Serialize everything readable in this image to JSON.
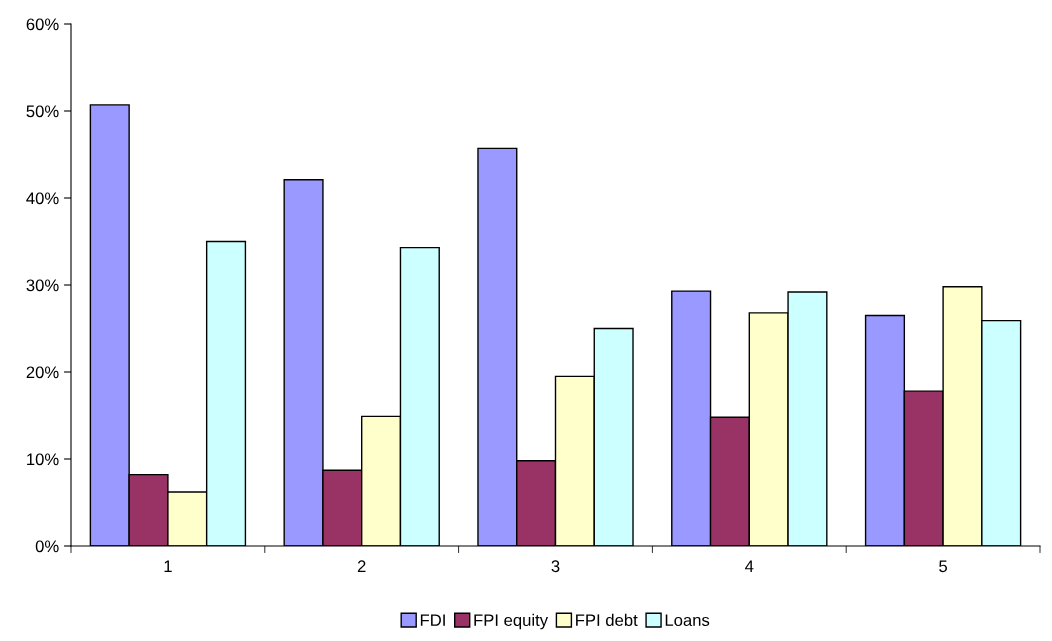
{
  "chart_data": {
    "type": "bar",
    "categories": [
      "1",
      "2",
      "3",
      "4",
      "5"
    ],
    "series": [
      {
        "name": "FDI",
        "color": "#9999ff",
        "values": [
          50.7,
          42.1,
          45.7,
          29.3,
          26.5
        ]
      },
      {
        "name": "FPI equity",
        "color": "#993366",
        "values": [
          8.2,
          8.7,
          9.8,
          14.8,
          17.8
        ]
      },
      {
        "name": "FPI debt",
        "color": "#ffffcc",
        "values": [
          6.2,
          14.9,
          19.5,
          26.8,
          29.8
        ]
      },
      {
        "name": "Loans",
        "color": "#ccffff",
        "values": [
          35.0,
          34.3,
          25.0,
          29.2,
          25.9
        ]
      }
    ],
    "ylim": [
      0,
      60
    ],
    "yticks": [
      {
        "value": 0,
        "label": "0%"
      },
      {
        "value": 10,
        "label": "10%"
      },
      {
        "value": 20,
        "label": "20%"
      },
      {
        "value": 30,
        "label": "30%"
      },
      {
        "value": 40,
        "label": "40%"
      },
      {
        "value": 50,
        "label": "50%"
      },
      {
        "value": 60,
        "label": "60%"
      }
    ],
    "grid": false,
    "legend": "bottom"
  }
}
